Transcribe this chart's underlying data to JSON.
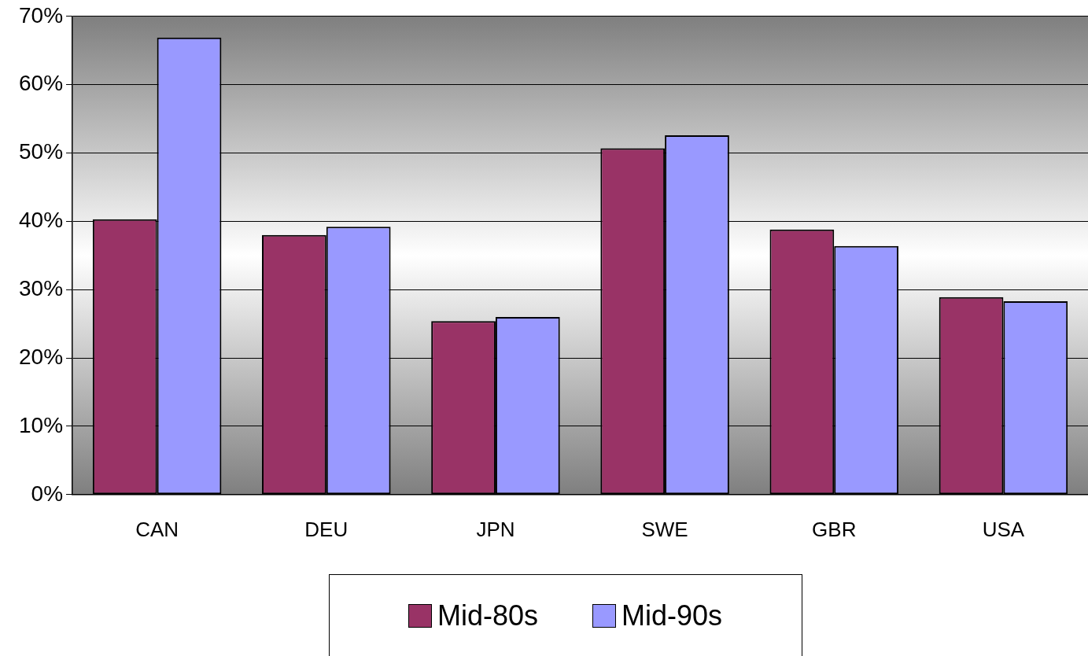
{
  "chart_data": {
    "type": "bar",
    "categories": [
      "CAN",
      "DEU",
      "JPN",
      "SWE",
      "GBR",
      "USA"
    ],
    "series": [
      {
        "name": "Mid-80s",
        "color": "#993366",
        "values": [
          40.3,
          38.0,
          25.4,
          50.7,
          38.8,
          28.9
        ]
      },
      {
        "name": "Mid-90s",
        "color": "#9999ff",
        "values": [
          66.9,
          39.2,
          26.0,
          52.6,
          36.4,
          28.3
        ]
      }
    ],
    "ylim": [
      0,
      70
    ],
    "yticks": [
      {
        "value": 0,
        "label": "0%"
      },
      {
        "value": 10,
        "label": "10%"
      },
      {
        "value": 20,
        "label": "20%"
      },
      {
        "value": 30,
        "label": "30%"
      },
      {
        "value": 40,
        "label": "40%"
      },
      {
        "value": 50,
        "label": "50%"
      },
      {
        "value": 60,
        "label": "60%"
      },
      {
        "value": 70,
        "label": "70%"
      }
    ],
    "grid": "y",
    "legend": "bottom"
  }
}
